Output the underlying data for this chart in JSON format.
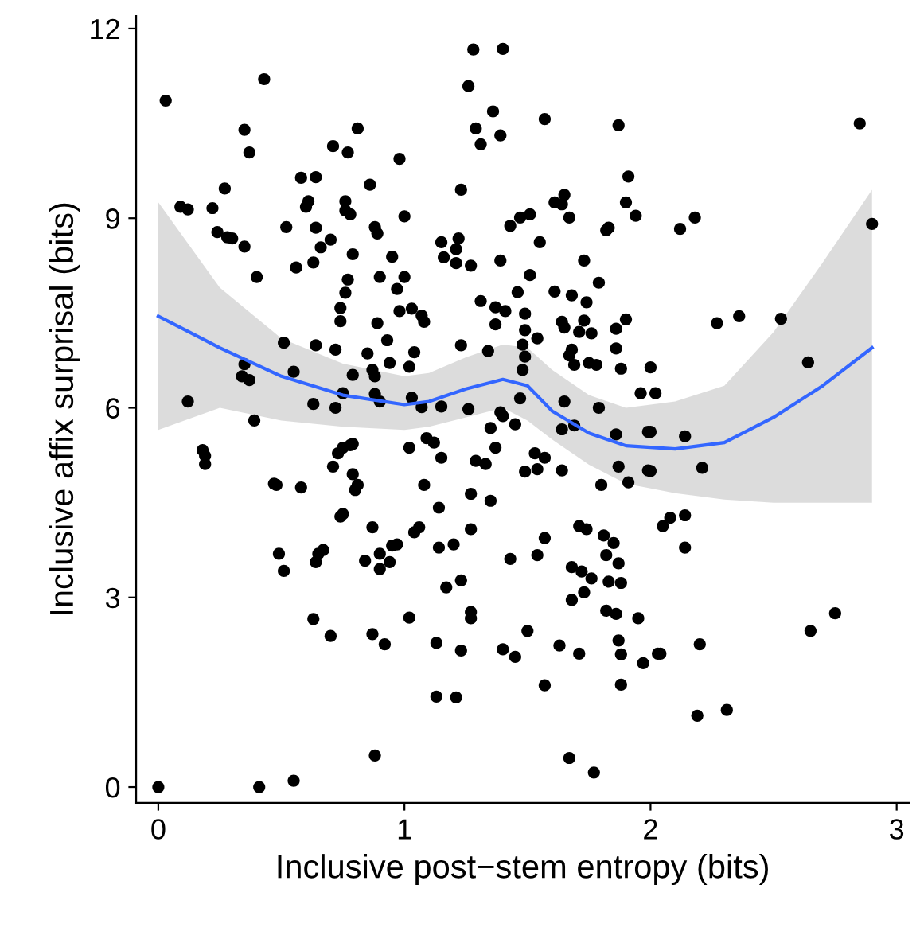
{
  "chart_data": {
    "type": "scatter",
    "xlabel": "Inclusive post−stem entropy (bits)",
    "ylabel": "Inclusive affix surprisal (bits)",
    "xlim": [
      -0.09,
      3.05
    ],
    "ylim": [
      -0.25,
      12.2
    ],
    "xticks": [
      0,
      1,
      2,
      3
    ],
    "yticks": [
      0,
      3,
      6,
      9,
      12
    ],
    "grid": false,
    "legend": false,
    "series": [
      {
        "color": "#000000",
        "marker": "circle",
        "x": [
          0.43,
          0.03,
          0.35,
          0.37,
          0.81,
          0.71,
          0.77,
          0.98,
          0.58,
          0.64,
          0.27,
          0.86,
          0.09,
          0.12,
          0.22,
          0.61,
          0.6,
          0.76,
          0.76,
          0.78,
          0.52,
          0.64,
          0.24,
          0.28,
          0.3,
          0.35,
          0.7,
          0.66,
          0.88,
          0.89,
          0.79,
          0.95,
          0.56,
          0.63,
          0.4,
          0.77,
          0.9,
          0.97,
          0.76,
          0.74,
          0.74,
          0.89,
          0.98,
          0.93,
          0.64,
          0.72,
          0.85,
          0.94,
          0.51,
          0.35,
          0.34,
          0.37,
          0.55,
          0.12,
          0.63,
          0.72,
          0.79,
          0.87,
          0.88,
          0.75,
          0.88,
          0.9,
          0.39,
          0.18,
          0.19,
          0.19,
          0.47,
          0.48,
          0.58,
          0.75,
          0.78,
          0.79,
          0.73,
          0.71,
          0.79,
          0.81,
          0.8,
          0.74,
          0.75,
          0.87,
          0.49,
          0.51,
          0.65,
          0.67,
          0.64,
          0.84,
          0.9,
          0.9,
          0.95,
          0.97,
          0.94,
          0.63,
          0.7,
          0.87,
          0.92,
          0.88,
          0,
          0.41,
          0.55,
          1.28,
          1.4,
          1.26,
          1.36,
          1.29,
          1.39,
          1.31,
          1.57,
          1.87,
          1.91,
          1.23,
          1.9,
          1.94,
          1.0,
          1.61,
          1.65,
          1.64,
          1.67,
          1.43,
          1.47,
          1.51,
          1.82,
          1.83,
          1.55,
          1.15,
          1.22,
          1.21,
          1.16,
          1.21,
          1.27,
          1.39,
          1.73,
          1.51,
          1.79,
          1.0,
          1.46,
          1.61,
          1.68,
          1.74,
          1.31,
          1.37,
          1.41,
          1.49,
          1.37,
          1.03,
          1.07,
          1.08,
          1.64,
          1.65,
          1.71,
          1.73,
          1.76,
          1.86,
          1.9,
          1.49,
          1.54,
          1.23,
          1.34,
          1.04,
          1.86,
          1.48,
          1.49,
          1.48,
          1.68,
          1.67,
          1.69,
          1.75,
          1.78,
          1.88,
          2.0,
          1.02,
          1.96,
          2.02,
          1.03,
          1.07,
          1.15,
          1.26,
          1.47,
          1.65,
          1.79,
          1.39,
          2.85,
          2.18,
          2.12,
          2.9,
          2.27,
          2.36,
          2.53,
          2.64,
          2.0,
          2.14,
          2.0,
          2.21,
          2.05,
          2.08,
          2.14,
          2.14,
          2.04,
          2.2,
          2.65,
          2.75,
          2.19,
          2.31,
          1.35,
          1.4,
          1.45,
          1.64,
          1.69,
          1.86,
          1.99,
          1.87,
          1.99,
          1.02,
          1.09,
          1.12,
          1.15,
          1.29,
          1.33,
          1.37,
          1.53,
          1.57,
          1.49,
          1.54,
          1.64,
          1.8,
          1.91,
          1.08,
          1.27,
          1.35,
          1.14,
          1.04,
          1.06,
          1.14,
          1.2,
          1.27,
          1.43,
          1.54,
          1.57,
          1.71,
          1.74,
          1.81,
          1.85,
          1.82,
          1.87,
          1.68,
          1.72,
          1.76,
          1.83,
          1.88,
          1.73,
          1.68,
          1.17,
          1.23,
          1.27,
          1.27,
          1.02,
          1.82,
          1.86,
          1.95,
          1.5,
          1.13,
          1.23,
          1.4,
          1.45,
          1.63,
          1.71,
          1.87,
          1.88,
          1.97,
          2.03,
          1.13,
          1.21,
          1.57,
          1.88,
          1.67,
          1.77
        ],
        "values": [
          11.2,
          10.86,
          10.4,
          10.04,
          10.42,
          10.14,
          10.04,
          9.94,
          9.64,
          9.65,
          9.47,
          9.53,
          9.18,
          9.14,
          9.16,
          9.27,
          9.18,
          9.27,
          9.12,
          9.06,
          8.86,
          8.85,
          8.78,
          8.7,
          8.68,
          8.55,
          8.66,
          8.54,
          8.86,
          8.76,
          8.43,
          8.39,
          8.22,
          8.3,
          8.07,
          8.03,
          8.07,
          7.88,
          7.82,
          7.58,
          7.37,
          7.34,
          7.53,
          7.07,
          6.99,
          6.92,
          6.86,
          6.71,
          7.03,
          6.69,
          6.5,
          6.44,
          6.57,
          6.1,
          6.06,
          6.0,
          6.52,
          6.6,
          6.5,
          6.23,
          6.22,
          6.1,
          5.8,
          5.33,
          5.24,
          5.11,
          4.8,
          4.78,
          4.74,
          5.37,
          5.41,
          5.43,
          5.28,
          5.07,
          4.95,
          4.78,
          4.7,
          4.28,
          4.32,
          4.11,
          3.69,
          3.42,
          3.69,
          3.75,
          3.56,
          3.58,
          3.69,
          3.45,
          3.82,
          3.84,
          3.56,
          2.66,
          2.39,
          2.42,
          2.26,
          0.5,
          0,
          0.0,
          0.1,
          11.67,
          11.68,
          11.09,
          10.69,
          10.42,
          10.31,
          10.17,
          10.57,
          10.47,
          9.66,
          9.45,
          9.25,
          9.04,
          9.03,
          9.25,
          9.37,
          9.22,
          9.01,
          8.88,
          9.01,
          9.06,
          8.81,
          8.85,
          8.62,
          8.62,
          8.68,
          8.51,
          8.38,
          8.29,
          8.25,
          8.33,
          8.33,
          8.1,
          7.98,
          8.07,
          7.83,
          7.84,
          7.78,
          7.67,
          7.69,
          7.59,
          7.53,
          7.49,
          7.32,
          7.57,
          7.46,
          7.36,
          7.36,
          7.27,
          7.2,
          7.38,
          7.18,
          7.25,
          7.4,
          7.23,
          7.1,
          6.99,
          6.9,
          6.88,
          6.94,
          7.0,
          6.81,
          6.6,
          6.92,
          6.83,
          6.68,
          6.71,
          6.68,
          6.62,
          6.64,
          6.65,
          6.23,
          6.23,
          6.16,
          6.01,
          6.02,
          5.98,
          6.15,
          6.1,
          6.0,
          5.93,
          10.5,
          9.01,
          8.83,
          8.91,
          7.34,
          7.45,
          7.41,
          6.72,
          5.62,
          5.55,
          5.0,
          5.05,
          4.13,
          4.26,
          4.3,
          3.79,
          2.11,
          2.26,
          2.47,
          2.75,
          1.13,
          1.22,
          5.68,
          5.87,
          5.74,
          5.66,
          5.72,
          5.58,
          5.62,
          5.07,
          5.01,
          5.37,
          5.52,
          5.45,
          5.21,
          5.16,
          5.11,
          5.37,
          5.28,
          5.21,
          4.99,
          5.03,
          5.01,
          4.78,
          4.82,
          4.78,
          4.64,
          4.53,
          4.42,
          4.03,
          4.11,
          3.79,
          3.84,
          4.08,
          3.61,
          3.67,
          3.94,
          4.13,
          4.08,
          3.98,
          3.86,
          3.67,
          3.54,
          3.48,
          3.41,
          3.3,
          3.25,
          3.23,
          3.08,
          2.96,
          3.16,
          3.27,
          2.77,
          2.67,
          2.68,
          2.79,
          2.74,
          2.67,
          2.47,
          2.28,
          2.16,
          2.18,
          2.06,
          2.24,
          2.11,
          2.32,
          2.1,
          1.96,
          2.11,
          1.43,
          1.42,
          1.61,
          1.62,
          0.46,
          0.23
        ]
      },
      {
        "type": "line",
        "color": "#3366ff",
        "x": [
          0,
          0.25,
          0.5,
          0.75,
          1.0,
          1.1,
          1.25,
          1.4,
          1.5,
          1.6,
          1.75,
          1.9,
          2.1,
          2.3,
          2.5,
          2.7,
          2.9
        ],
        "values": [
          7.45,
          6.95,
          6.5,
          6.2,
          6.05,
          6.1,
          6.3,
          6.45,
          6.35,
          5.95,
          5.6,
          5.4,
          5.35,
          5.45,
          5.85,
          6.35,
          6.95
        ],
        "lower": [
          5.65,
          6.0,
          5.8,
          5.7,
          5.65,
          5.7,
          5.85,
          6.0,
          5.8,
          5.5,
          5.1,
          4.8,
          4.65,
          4.55,
          4.5,
          4.5,
          4.5
        ],
        "upper": [
          9.25,
          7.9,
          7.1,
          6.7,
          6.5,
          6.55,
          6.8,
          7.0,
          6.95,
          6.6,
          6.2,
          6.0,
          6.1,
          6.35,
          7.2,
          8.3,
          9.45
        ]
      }
    ]
  }
}
